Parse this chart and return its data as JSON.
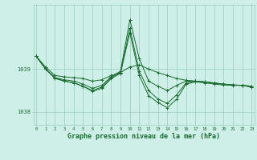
{
  "bg_color": "#ceeee8",
  "grid_color": "#99ccbb",
  "line_color": "#1a6b30",
  "xlabel": "Graphe pression niveau de la mer (hPa)",
  "xlabel_fontsize": 6.0,
  "ytick_labels": [
    "1038",
    "1039"
  ],
  "ytick_vals": [
    1038.0,
    1039.0
  ],
  "ylim": [
    1037.7,
    1040.5
  ],
  "xlim": [
    -0.3,
    23.3
  ],
  "xticks": [
    0,
    1,
    2,
    3,
    4,
    5,
    6,
    7,
    8,
    9,
    10,
    11,
    12,
    13,
    14,
    15,
    16,
    17,
    18,
    19,
    20,
    21,
    22,
    23
  ],
  "series": [
    [
      1039.3,
      1039.05,
      1038.85,
      1038.82,
      1038.8,
      1038.78,
      1038.72,
      1038.75,
      1038.85,
      1038.92,
      1039.05,
      1039.1,
      1039.0,
      1038.92,
      1038.85,
      1038.78,
      1038.74,
      1038.72,
      1038.7,
      1038.68,
      1038.65,
      1038.63,
      1038.62,
      1038.6
    ],
    [
      1039.3,
      1039.0,
      1038.8,
      1038.75,
      1038.72,
      1038.65,
      1038.55,
      1038.62,
      1038.82,
      1038.95,
      1040.15,
      1039.25,
      1038.72,
      1038.6,
      1038.5,
      1038.62,
      1038.72,
      1038.72,
      1038.7,
      1038.67,
      1038.65,
      1038.63,
      1038.62,
      1038.6
    ],
    [
      1039.3,
      1039.0,
      1038.78,
      1038.72,
      1038.68,
      1038.6,
      1038.48,
      1038.55,
      1038.78,
      1038.9,
      1039.85,
      1038.85,
      1038.38,
      1038.22,
      1038.1,
      1038.3,
      1038.65,
      1038.7,
      1038.68,
      1038.65,
      1038.63,
      1038.62,
      1038.62,
      1038.58
    ],
    [
      1039.3,
      1039.0,
      1038.8,
      1038.72,
      1038.68,
      1038.6,
      1038.5,
      1038.58,
      1038.8,
      1038.92,
      1039.95,
      1038.95,
      1038.5,
      1038.3,
      1038.2,
      1038.4,
      1038.68,
      1038.72,
      1038.7,
      1038.67,
      1038.65,
      1038.63,
      1038.62,
      1038.58
    ]
  ]
}
